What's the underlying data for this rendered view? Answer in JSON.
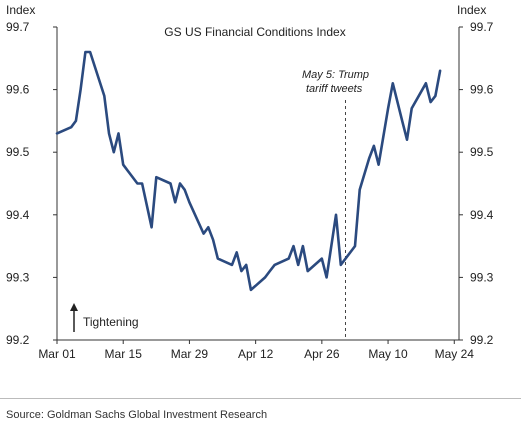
{
  "chart_data": {
    "type": "line",
    "title": "GS US Financial Conditions Index",
    "ylabel_left": "Index",
    "ylabel_right": "Index",
    "ylim": [
      99.2,
      99.7
    ],
    "yticks": [
      "99.2",
      "99.3",
      "99.4",
      "99.5",
      "99.6",
      "99.7"
    ],
    "xlim": [
      0,
      85
    ],
    "xticks": [
      {
        "label": "Mar 01",
        "day": 0
      },
      {
        "label": "Mar 15",
        "day": 14
      },
      {
        "label": "Mar 29",
        "day": 28
      },
      {
        "label": "Apr 12",
        "day": 42
      },
      {
        "label": "Apr 26",
        "day": 56
      },
      {
        "label": "May 10",
        "day": 70
      },
      {
        "label": "May 24",
        "day": 84
      }
    ],
    "grid": false,
    "series": [
      {
        "color": "#2b4a7f",
        "points": [
          [
            0,
            99.53
          ],
          [
            3,
            99.54
          ],
          [
            4,
            99.55
          ],
          [
            5,
            99.6
          ],
          [
            6,
            99.66
          ],
          [
            7,
            99.66
          ],
          [
            10,
            99.59
          ],
          [
            11,
            99.53
          ],
          [
            12,
            99.5
          ],
          [
            13,
            99.53
          ],
          [
            14,
            99.48
          ],
          [
            17,
            99.45
          ],
          [
            18,
            99.45
          ],
          [
            20,
            99.38
          ],
          [
            21,
            99.46
          ],
          [
            24,
            99.45
          ],
          [
            25,
            99.42
          ],
          [
            26,
            99.45
          ],
          [
            27,
            99.44
          ],
          [
            28,
            99.42
          ],
          [
            31,
            99.37
          ],
          [
            32,
            99.38
          ],
          [
            33,
            99.36
          ],
          [
            34,
            99.33
          ],
          [
            37,
            99.32
          ],
          [
            38,
            99.34
          ],
          [
            39,
            99.31
          ],
          [
            40,
            99.32
          ],
          [
            41,
            99.28
          ],
          [
            44,
            99.3
          ],
          [
            45,
            99.31
          ],
          [
            46,
            99.32
          ],
          [
            49,
            99.33
          ],
          [
            50,
            99.35
          ],
          [
            51,
            99.32
          ],
          [
            52,
            99.35
          ],
          [
            53,
            99.31
          ],
          [
            56,
            99.33
          ],
          [
            57,
            99.3
          ],
          [
            59,
            99.4
          ],
          [
            60,
            99.32
          ],
          [
            63,
            99.35
          ],
          [
            64,
            99.44
          ],
          [
            66,
            99.49
          ],
          [
            67,
            99.51
          ],
          [
            68,
            99.48
          ],
          [
            70,
            99.57
          ],
          [
            71,
            99.61
          ],
          [
            73,
            99.55
          ],
          [
            74,
            99.52
          ],
          [
            75,
            99.57
          ],
          [
            78,
            99.61
          ],
          [
            79,
            99.58
          ],
          [
            80,
            99.59
          ],
          [
            81,
            99.63
          ]
        ]
      }
    ],
    "annotations": [
      {
        "text_lines": [
          "May 5: Trump",
          "tariff tweets"
        ],
        "day": 61
      },
      {
        "text": "Tightening"
      }
    ]
  },
  "source": "Source: Goldman Sachs Global Investment Research"
}
